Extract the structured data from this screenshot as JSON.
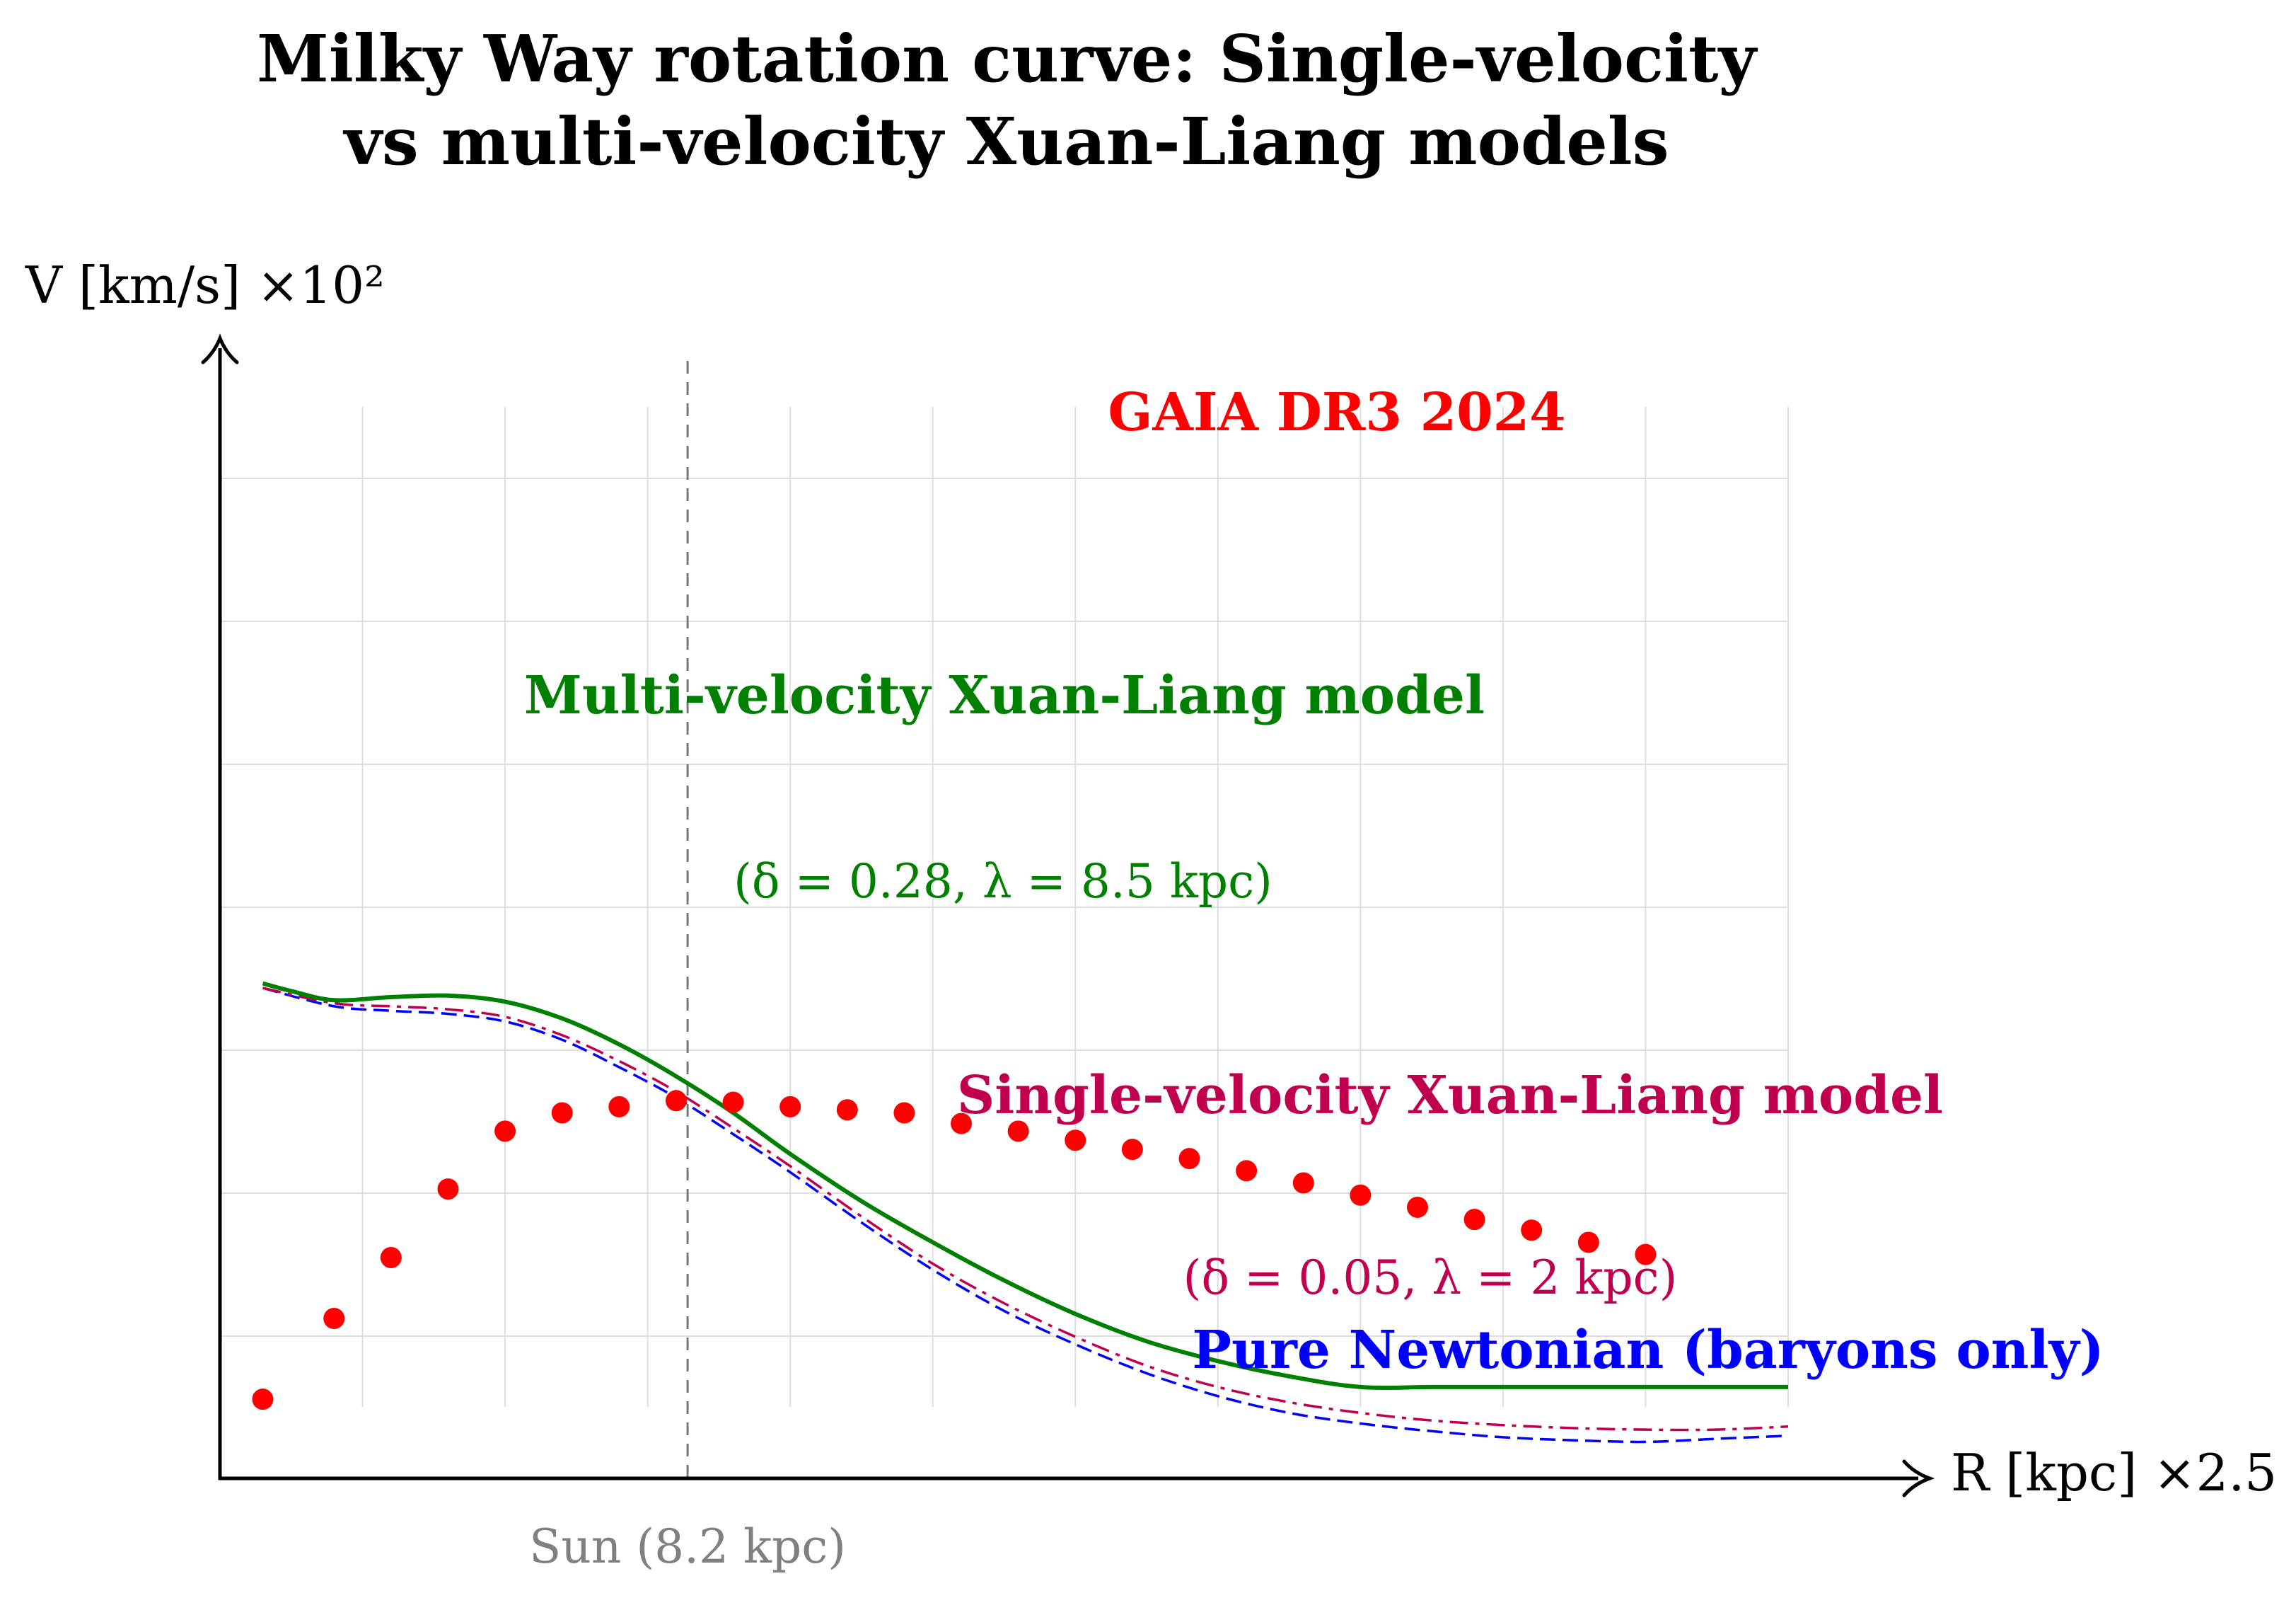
{
  "chart_data": {
    "type": "line",
    "title_lines": [
      "Milky Way rotation curve: Single-velocity",
      "vs multi-velocity Xuan-Liang models"
    ],
    "ylabel": "V [km/s] ×10²",
    "xlabel": "R [kpc] ×2.5",
    "xlim": [
      0,
      11
    ],
    "ylim": [
      0,
      7.5
    ],
    "grid": true,
    "sun": {
      "x": 3.28,
      "label": "Sun (8.2 kpc)"
    },
    "series": [
      {
        "name": "GAIA DR3 2024",
        "style": "dots",
        "color": "#ff0000",
        "label": "GAIA DR3 2024",
        "x": [
          0.3,
          0.8,
          1.2,
          1.6,
          2.0,
          2.4,
          2.8,
          3.2,
          3.6,
          4.0,
          4.4,
          4.8,
          5.2,
          5.6,
          6.0,
          6.4,
          6.8,
          7.2,
          7.6,
          8.0,
          8.4,
          8.8,
          9.2,
          9.6,
          10.0
        ],
        "y": [
          0.52,
          1.05,
          1.45,
          1.9,
          2.28,
          2.4,
          2.44,
          2.48,
          2.47,
          2.44,
          2.42,
          2.4,
          2.33,
          2.28,
          2.22,
          2.16,
          2.1,
          2.02,
          1.94,
          1.86,
          1.78,
          1.7,
          1.63,
          1.55,
          1.47
        ]
      },
      {
        "name": "Multi-velocity Xuan-Liang model",
        "style": "solid",
        "color": "#008000",
        "label": "Multi-velocity Xuan-Liang model",
        "param_label": "(δ = 0.28, λ = 8.5 kpc)",
        "x": [
          0.3,
          0.5,
          0.8,
          1.2,
          1.6,
          2.0,
          2.4,
          2.8,
          3.2,
          3.6,
          4.0,
          4.5,
          5.0,
          5.5,
          6.0,
          6.5,
          7.0,
          7.5,
          8.0,
          8.5,
          9.0,
          9.5,
          10.0,
          10.5,
          11.0
        ],
        "y": [
          3.25,
          3.2,
          3.14,
          3.16,
          3.17,
          3.13,
          3.02,
          2.85,
          2.64,
          2.4,
          2.13,
          1.82,
          1.55,
          1.3,
          1.08,
          0.9,
          0.77,
          0.67,
          0.6,
          0.6,
          0.6,
          0.6,
          0.6,
          0.6,
          0.6
        ]
      },
      {
        "name": "Single-velocity Xuan-Liang model",
        "style": "dashdot",
        "color": "#c0004f",
        "label": "Single-velocity Xuan-Liang model",
        "param_label": "(δ = 0.05, λ = 2 kpc)",
        "x": [
          0.3,
          0.8,
          1.2,
          1.6,
          2.0,
          2.4,
          2.8,
          3.2,
          3.6,
          4.0,
          4.5,
          5.0,
          5.5,
          6.0,
          6.5,
          7.0,
          7.5,
          8.0,
          8.5,
          9.0,
          9.5,
          10.0,
          10.5,
          11.0
        ],
        "y": [
          3.22,
          3.12,
          3.1,
          3.08,
          3.03,
          2.91,
          2.74,
          2.54,
          2.3,
          2.05,
          1.72,
          1.41,
          1.15,
          0.93,
          0.74,
          0.6,
          0.5,
          0.43,
          0.38,
          0.35,
          0.33,
          0.32,
          0.32,
          0.34
        ]
      },
      {
        "name": "Pure Newtonian (baryons only)",
        "style": "dashed",
        "color": "#0000ff",
        "label": "Pure Newtonian (baryons only)",
        "x": [
          0.3,
          0.8,
          1.2,
          1.6,
          2.0,
          2.4,
          2.8,
          3.2,
          3.6,
          4.0,
          4.5,
          5.0,
          5.5,
          6.0,
          6.5,
          7.0,
          7.5,
          8.0,
          8.5,
          9.0,
          9.5,
          10.0,
          10.5,
          11.0
        ],
        "y": [
          3.22,
          3.1,
          3.07,
          3.05,
          3.0,
          2.88,
          2.7,
          2.5,
          2.26,
          2.01,
          1.68,
          1.37,
          1.1,
          0.88,
          0.69,
          0.54,
          0.43,
          0.36,
          0.31,
          0.27,
          0.25,
          0.24,
          0.26,
          0.28
        ]
      }
    ]
  }
}
